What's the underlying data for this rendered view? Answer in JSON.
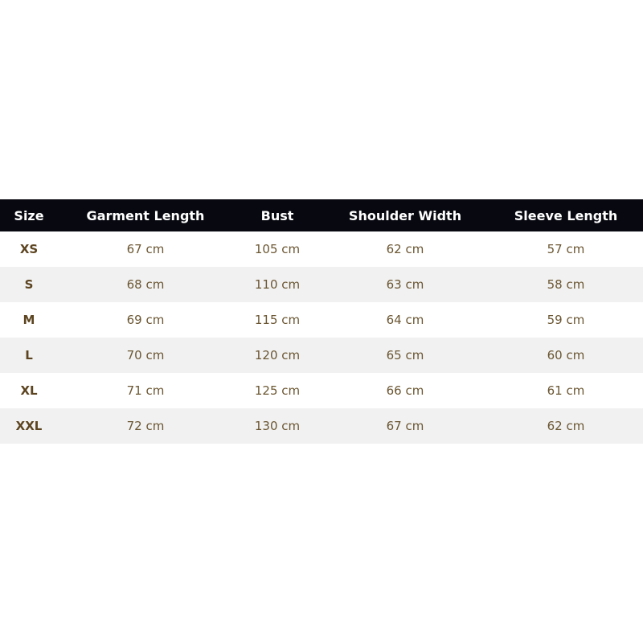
{
  "table": {
    "headers": [
      "Size",
      "Garment Length",
      "Bust",
      "Shoulder Width",
      "Sleeve Length"
    ],
    "rows": [
      [
        "XS",
        "67 cm",
        "105 cm",
        "62 cm",
        "57 cm"
      ],
      [
        "S",
        "68 cm",
        "110 cm",
        "63 cm",
        "58 cm"
      ],
      [
        "M",
        "69 cm",
        "115 cm",
        "64 cm",
        "59 cm"
      ],
      [
        "L",
        "70 cm",
        "120 cm",
        "65 cm",
        "60 cm"
      ],
      [
        "XL",
        "71 cm",
        "125 cm",
        "66 cm",
        "61 cm"
      ],
      [
        "XXL",
        "72 cm",
        "130 cm",
        "67 cm",
        "62 cm"
      ]
    ],
    "colors": {
      "header_bg": "#070810",
      "header_text": "#ffffff",
      "alt_row": "#f1f1f1",
      "text": "#6b5632"
    }
  }
}
